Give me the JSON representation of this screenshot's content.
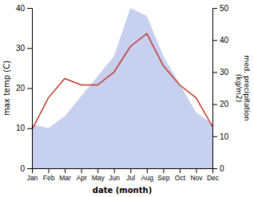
{
  "chart_data": {
    "type": "area",
    "categories": [
      "Jan",
      "Feb",
      "Mar",
      "Apr",
      "May",
      "Jun",
      "Jul",
      "Aug",
      "Sep",
      "Oct",
      "Nov",
      "Dec"
    ],
    "xlabel": "date (month)",
    "ylabel": "max temp (C)",
    "y2label": "med. precipitation\n(kg/m2)",
    "series": [
      {
        "type": "area",
        "color": "#c8d0f0",
        "values": [
          11,
          10,
          13,
          18,
          23,
          28,
          40,
          38,
          28,
          21,
          14,
          11
        ]
      },
      {
        "type": "line",
        "color": "#c0392b",
        "axis": "y2",
        "values": [
          12,
          22,
          28,
          26,
          26,
          30,
          38,
          42,
          32,
          26,
          22,
          13
        ]
      }
    ],
    "ylim": [
      0,
      40
    ],
    "yticks": [
      0,
      10,
      20,
      30,
      40
    ],
    "y2lim": [
      0,
      50
    ],
    "y2ticks": [
      0,
      10,
      20,
      30,
      40,
      50
    ],
    "grid": false
  }
}
